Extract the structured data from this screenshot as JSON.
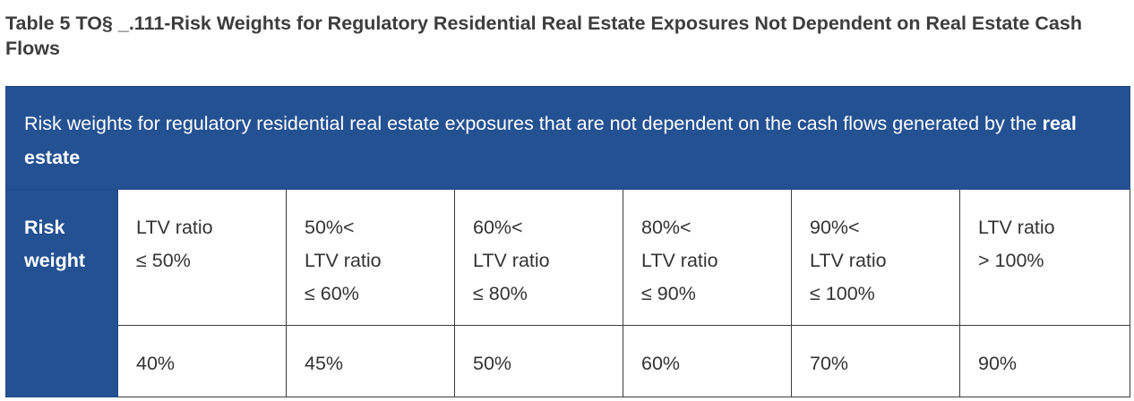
{
  "caption": "Table 5 TO§ _.111-Risk Weights for Regulatory Residential Real Estate Exposures Not Dependent on Real Estate Cash Flows",
  "header": {
    "text": "Risk weights for regulatory residential real estate exposures that are not dependent on the cash flows generated by the ",
    "bold": "real estate"
  },
  "row_label_lines": [
    "Risk",
    "weight"
  ],
  "ltv_columns": [
    {
      "lines": [
        "LTV ratio",
        "≤ 50%"
      ],
      "weight": "40%"
    },
    {
      "lines": [
        "50%<",
        "LTV ratio",
        "≤ 60%"
      ],
      "weight": "45%"
    },
    {
      "lines": [
        "60%<",
        "LTV ratio",
        "≤ 80%"
      ],
      "weight": "50%"
    },
    {
      "lines": [
        "80%<",
        "LTV ratio",
        "≤ 90%"
      ],
      "weight": "60%"
    },
    {
      "lines": [
        "90%<",
        "LTV ratio",
        "≤ 100%"
      ],
      "weight": "70%"
    },
    {
      "lines": [
        "LTV ratio",
        "> 100%"
      ],
      "weight": "90%"
    }
  ],
  "colors": {
    "header_bg": "#245192",
    "header_text": "#ffffff"
  }
}
